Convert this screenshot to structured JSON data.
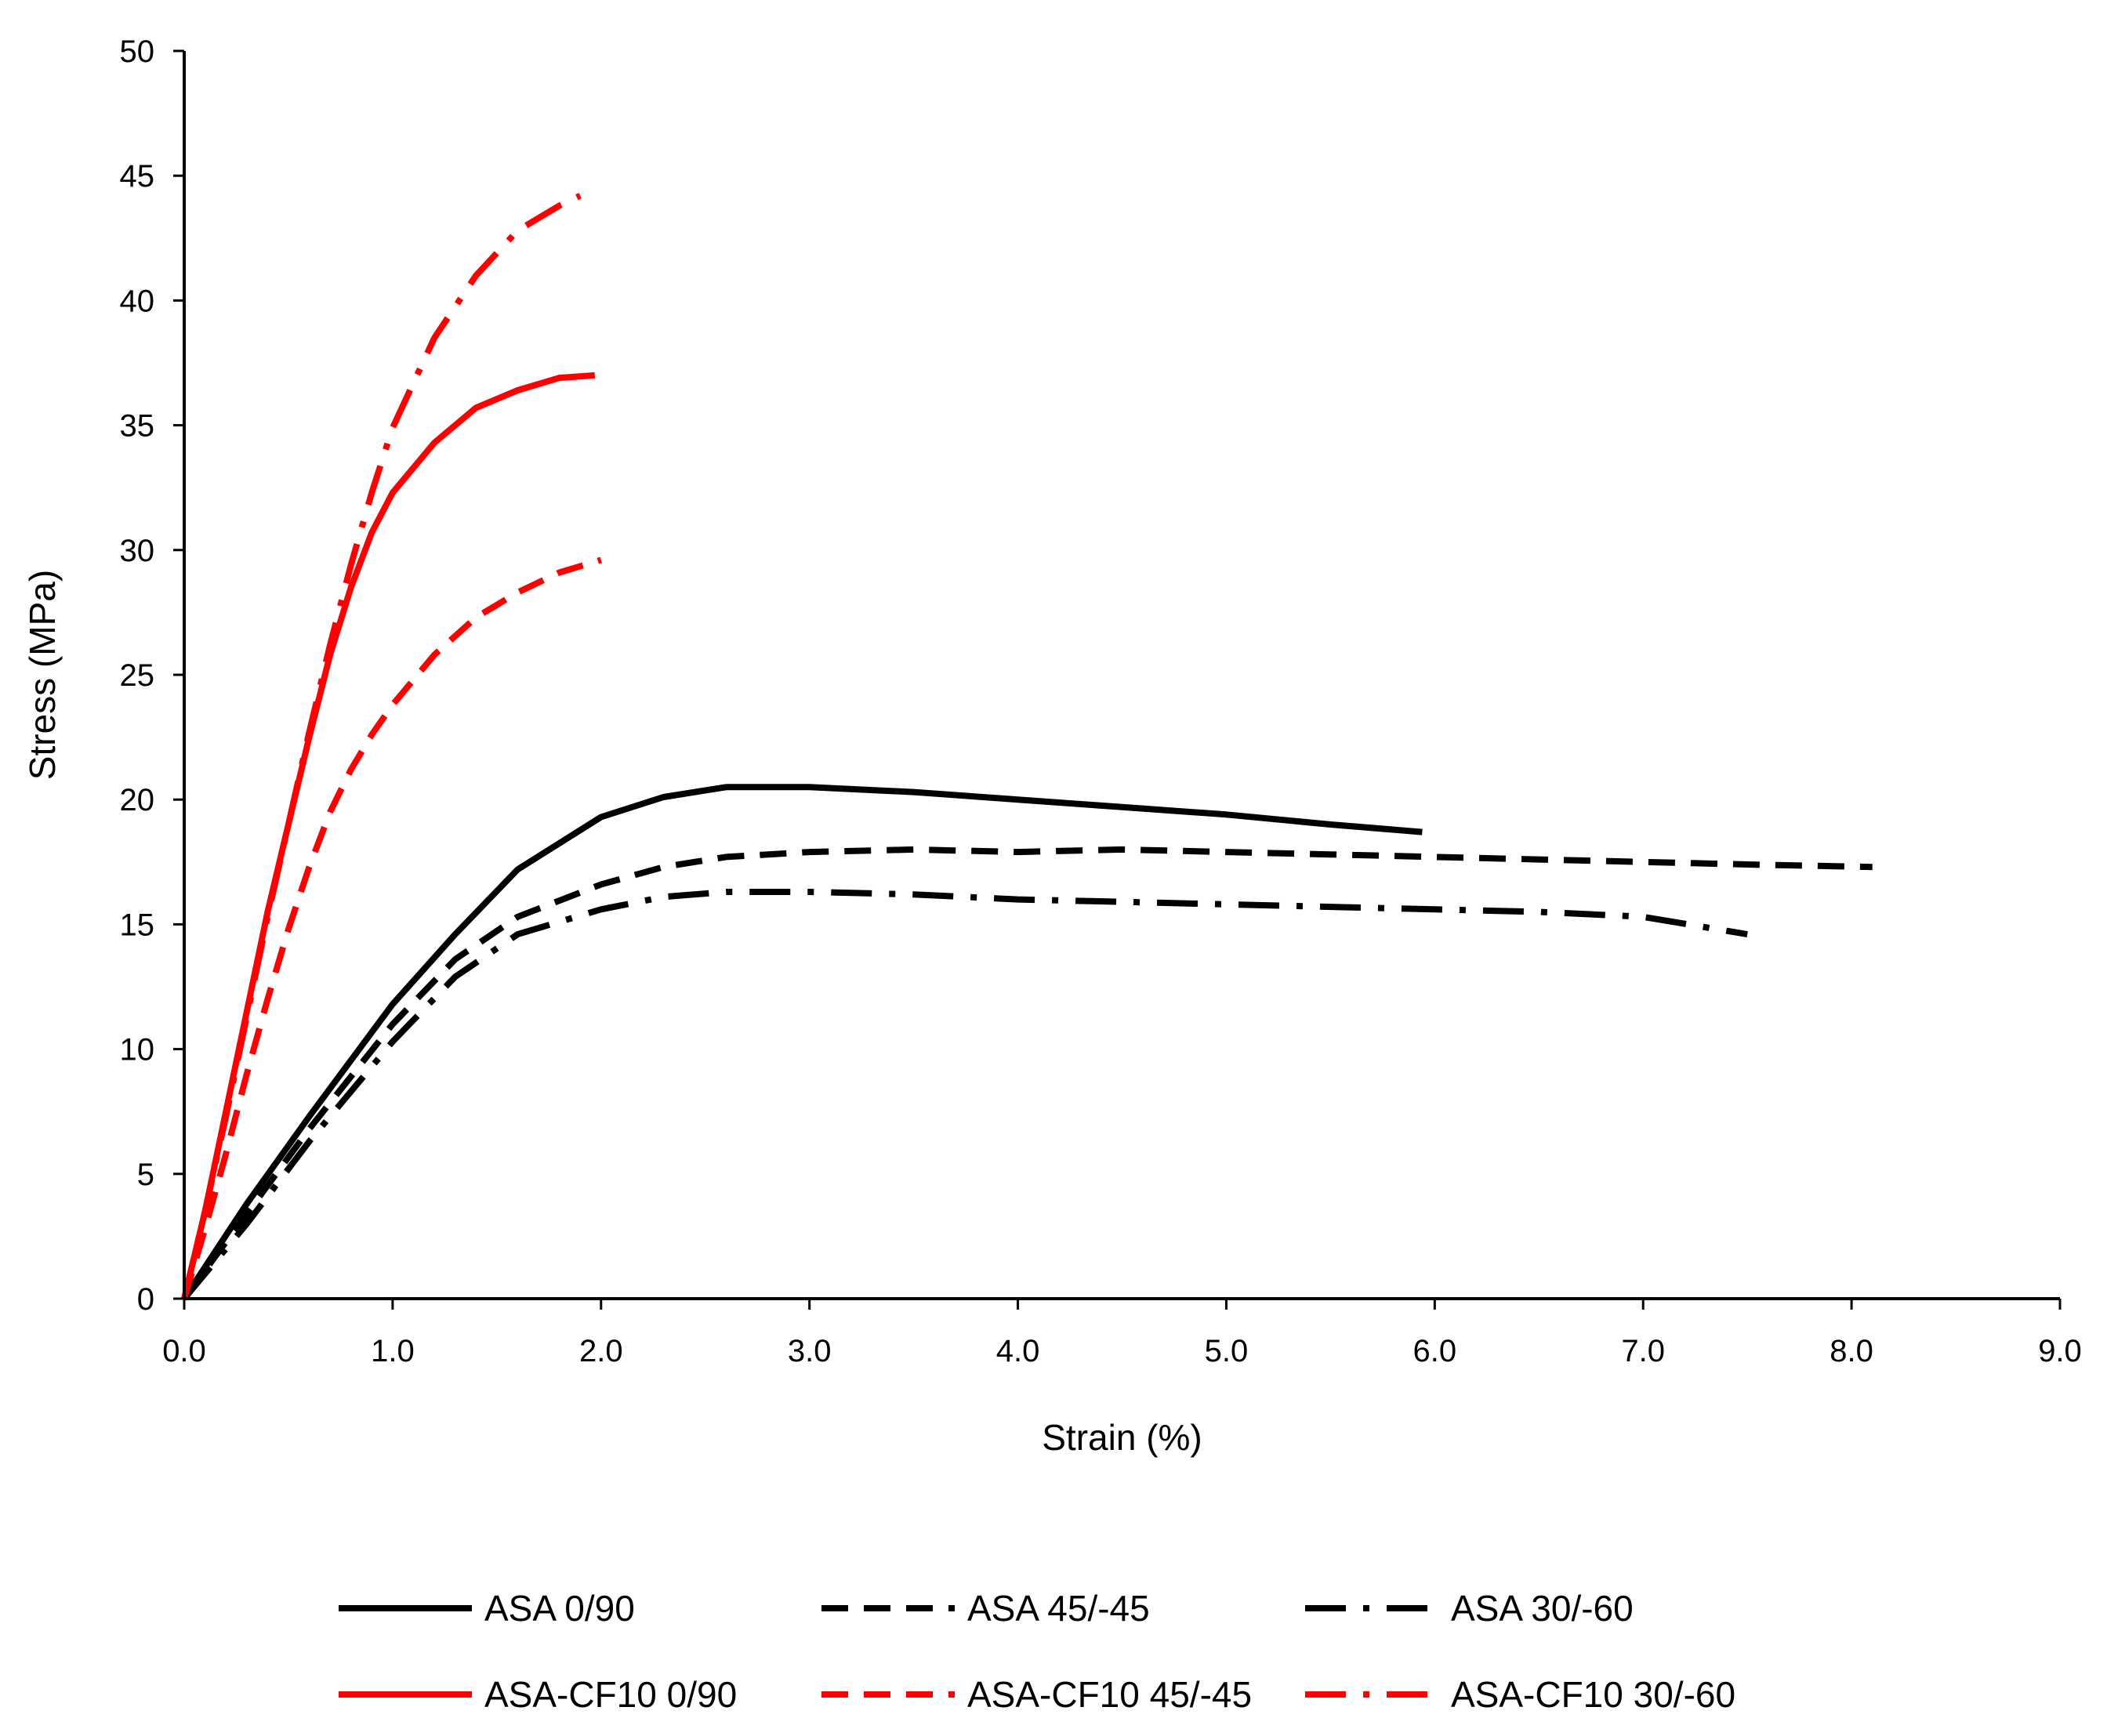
{
  "chart_data": {
    "type": "line",
    "title": "",
    "xlabel": "Strain (%)",
    "ylabel": "Stress (MPa)",
    "xlim": [
      0,
      9
    ],
    "ylim": [
      0,
      50
    ],
    "xticks": [
      "0.0",
      "1.0",
      "2.0",
      "3.0",
      "4.0",
      "5.0",
      "6.0",
      "7.0",
      "8.0",
      "9.0"
    ],
    "yticks": [
      "0",
      "5",
      "10",
      "15",
      "20",
      "25",
      "30",
      "35",
      "40",
      "45",
      "50"
    ],
    "grid": false,
    "legend_position": "bottom",
    "series": [
      {
        "name": "ASA 0/90",
        "color": "#000000",
        "dash": "solid",
        "x": [
          0,
          0.3,
          0.6,
          1.0,
          1.3,
          1.6,
          2.0,
          2.3,
          2.6,
          3.0,
          3.5,
          4.0,
          4.5,
          5.0,
          5.5,
          5.94
        ],
        "y": [
          0,
          3.8,
          7.3,
          11.8,
          14.6,
          17.2,
          19.3,
          20.1,
          20.5,
          20.5,
          20.3,
          20.0,
          19.7,
          19.4,
          19.0,
          18.7
        ]
      },
      {
        "name": "ASA 45/-45",
        "color": "#000000",
        "dash": "dash",
        "x": [
          0,
          0.3,
          0.6,
          1.0,
          1.3,
          1.6,
          2.0,
          2.3,
          2.6,
          3.0,
          3.5,
          4.0,
          4.5,
          5.0,
          5.5,
          6.0,
          6.5,
          7.0,
          7.5,
          8.1
        ],
        "y": [
          0,
          3.4,
          6.8,
          11.0,
          13.6,
          15.3,
          16.6,
          17.3,
          17.7,
          17.9,
          18.0,
          17.9,
          18.0,
          17.9,
          17.8,
          17.7,
          17.6,
          17.5,
          17.4,
          17.3
        ]
      },
      {
        "name": "ASA 30/-60",
        "color": "#000000",
        "dash": "dashdot",
        "x": [
          0,
          0.3,
          0.6,
          1.0,
          1.3,
          1.6,
          2.0,
          2.3,
          2.6,
          3.0,
          3.5,
          4.0,
          4.5,
          5.0,
          5.5,
          6.0,
          6.5,
          7.0,
          7.5
        ],
        "y": [
          0,
          3.0,
          6.3,
          10.3,
          12.9,
          14.6,
          15.6,
          16.1,
          16.3,
          16.3,
          16.2,
          16.0,
          15.9,
          15.8,
          15.7,
          15.6,
          15.5,
          15.3,
          14.6
        ]
      },
      {
        "name": "ASA-CF10 0/90",
        "color": "#ff0000",
        "dash": "solid",
        "x": [
          0,
          0.1,
          0.2,
          0.3,
          0.4,
          0.5,
          0.6,
          0.7,
          0.8,
          0.9,
          1.0,
          1.2,
          1.4,
          1.6,
          1.8,
          1.97
        ],
        "y": [
          0,
          3.5,
          7.5,
          11.5,
          15.5,
          19.0,
          22.5,
          25.8,
          28.5,
          30.7,
          32.3,
          34.3,
          35.7,
          36.4,
          36.9,
          37.0
        ]
      },
      {
        "name": "ASA-CF10 45/-45",
        "color": "#ff0000",
        "dash": "dash",
        "x": [
          0,
          0.1,
          0.2,
          0.3,
          0.4,
          0.5,
          0.6,
          0.7,
          0.8,
          0.9,
          1.0,
          1.2,
          1.4,
          1.6,
          1.8,
          2.0
        ],
        "y": [
          0,
          2.8,
          5.8,
          9.0,
          12.0,
          14.8,
          17.3,
          19.5,
          21.2,
          22.6,
          23.8,
          25.8,
          27.3,
          28.3,
          29.1,
          29.6
        ]
      },
      {
        "name": "ASA-CF10 30/-60",
        "color": "#ff0000",
        "dash": "dashdot",
        "x": [
          0,
          0.1,
          0.2,
          0.3,
          0.4,
          0.5,
          0.6,
          0.7,
          0.8,
          0.9,
          1.0,
          1.2,
          1.4,
          1.6,
          1.8,
          1.9
        ],
        "y": [
          0,
          3.5,
          7.3,
          11.3,
          15.3,
          19.0,
          22.7,
          26.2,
          29.4,
          32.3,
          34.9,
          38.5,
          41.0,
          42.8,
          43.8,
          44.2
        ]
      }
    ]
  }
}
